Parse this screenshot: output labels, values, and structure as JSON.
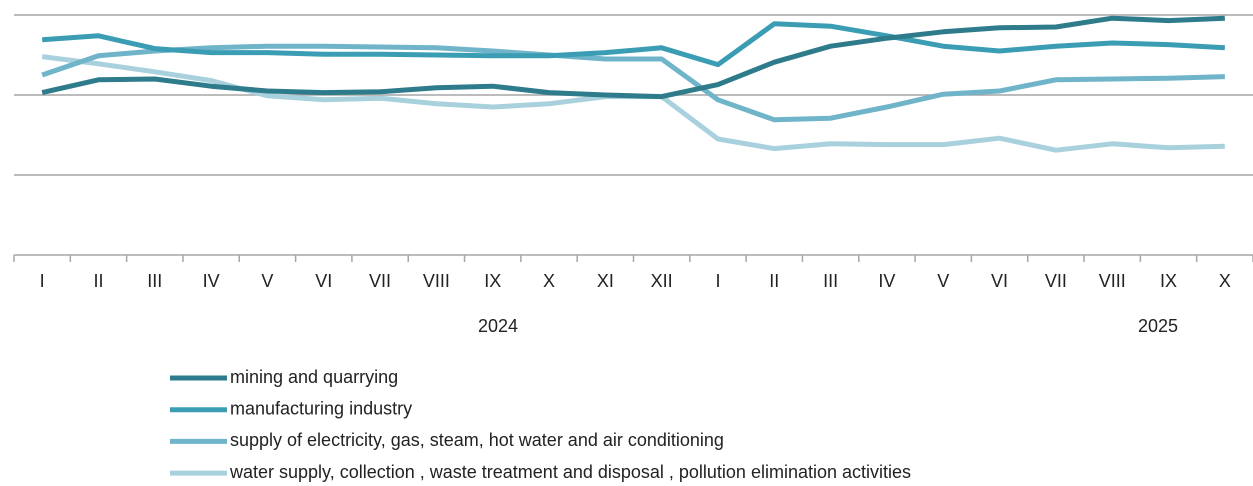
{
  "chart_data": {
    "type": "line",
    "categories": [
      "I",
      "II",
      "III",
      "IV",
      "V",
      "VI",
      "VII",
      "VIII",
      "IX",
      "X",
      "XI",
      "XII",
      "I",
      "II",
      "III",
      "IV",
      "V",
      "VI",
      "VII",
      "VIII",
      "IX",
      "X"
    ],
    "years": [
      "2024",
      "2025"
    ],
    "ylim": [
      0,
      3
    ],
    "yticks": [
      0,
      1,
      2,
      3
    ],
    "grid": true,
    "series": [
      {
        "name": "mining and quarrying",
        "color": "#2e7b8b",
        "values": [
          2.03,
          2.19,
          2.2,
          2.11,
          2.05,
          2.03,
          2.04,
          2.09,
          2.11,
          2.03,
          2.0,
          1.98,
          2.13,
          2.41,
          2.61,
          2.71,
          2.79,
          2.84,
          2.85,
          2.96,
          2.93,
          2.96
        ]
      },
      {
        "name": "manufacturing industry",
        "color": "#3b9db3",
        "values": [
          2.69,
          2.74,
          2.58,
          2.53,
          2.53,
          2.51,
          2.51,
          2.5,
          2.49,
          2.49,
          2.53,
          2.59,
          2.38,
          2.89,
          2.86,
          2.74,
          2.61,
          2.55,
          2.61,
          2.65,
          2.63,
          2.59
        ]
      },
      {
        "name": "supply of electricity, gas, steam, hot water and air conditioning",
        "color": "#6fb4c8",
        "values": [
          2.25,
          2.49,
          2.55,
          2.59,
          2.61,
          2.61,
          2.6,
          2.59,
          2.55,
          2.5,
          2.45,
          2.45,
          1.94,
          1.69,
          1.71,
          1.85,
          2.01,
          2.05,
          2.19,
          2.2,
          2.21,
          2.23
        ]
      },
      {
        "name": "water supply, collection , waste treatment and disposal , pollution elimination activities",
        "color": "#a9d1dd",
        "values": [
          2.48,
          2.39,
          2.29,
          2.18,
          1.99,
          1.94,
          1.96,
          1.89,
          1.85,
          1.89,
          1.98,
          1.98,
          1.45,
          1.33,
          1.39,
          1.38,
          1.38,
          1.46,
          1.31,
          1.39,
          1.34,
          1.36
        ]
      }
    ]
  }
}
